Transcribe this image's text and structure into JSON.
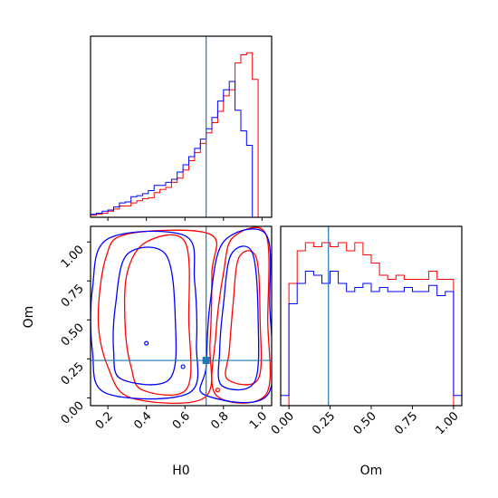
{
  "chart_data": {
    "type": "corner",
    "parameters": [
      "H0",
      "Om"
    ],
    "truths": {
      "H0": 0.71,
      "Om": 0.24
    },
    "colors": {
      "red": "#ff0000",
      "blue": "#0000ff",
      "truth": "#1f77b4"
    },
    "panels": [
      {
        "id": "H0-hist",
        "type": "histogram",
        "xlim": [
          0.11,
          1.05
        ],
        "edges": [
          0.11,
          0.14,
          0.17,
          0.2,
          0.23,
          0.26,
          0.29,
          0.32,
          0.35,
          0.38,
          0.41,
          0.44,
          0.47,
          0.5,
          0.53,
          0.56,
          0.59,
          0.62,
          0.65,
          0.68,
          0.71,
          0.74,
          0.77,
          0.8,
          0.83,
          0.86,
          0.89,
          0.92,
          0.95,
          0.98,
          1.01,
          1.05
        ],
        "series": [
          {
            "color": "red",
            "values": [
              2,
              3,
              4,
              6,
              8,
              11,
              11,
              14,
              16,
              18,
              19,
              24,
              27,
              29,
              34,
              38,
              46,
              55,
              63,
              72,
              82,
              92,
              103,
              118,
              124,
              150,
              158,
              160,
              134,
              0,
              0
            ]
          },
          {
            "color": "blue",
            "values": [
              3,
              4,
              6,
              7,
              10,
              14,
              15,
              20,
              21,
              23,
              26,
              31,
              31,
              34,
              37,
              44,
              51,
              59,
              67,
              76,
              86,
              97,
              113,
              124,
              132,
              104,
              84,
              70,
              0,
              0,
              0
            ]
          }
        ]
      },
      {
        "id": "H0-Om-2d",
        "type": "contour",
        "xlim": [
          0.11,
          1.05
        ],
        "ylim": [
          -0.05,
          1.1
        ],
        "xticks": [
          "0.2",
          "0.4",
          "0.6",
          "0.8",
          "1.0"
        ],
        "yticks": [
          "0.00",
          "0.25",
          "0.50",
          "0.75",
          "1.00"
        ],
        "xlabel": "H0",
        "ylabel": "Om",
        "contours": [
          {
            "color": "red",
            "points": [
              [
                0.32,
                0.0
              ],
              [
                0.7,
                0.0
              ],
              [
                0.73,
                0.35
              ],
              [
                0.74,
                0.8
              ],
              [
                0.73,
                1.05
              ],
              [
                0.3,
                1.05
              ],
              [
                0.19,
                0.9
              ],
              [
                0.15,
                0.5
              ],
              [
                0.2,
                0.2
              ]
            ]
          },
          {
            "color": "red",
            "points": [
              [
                0.38,
                0.05
              ],
              [
                0.61,
                0.06
              ],
              [
                0.62,
                0.5
              ],
              [
                0.6,
                1.0
              ],
              [
                0.4,
                1.0
              ],
              [
                0.3,
                0.8
              ],
              [
                0.29,
                0.45
              ],
              [
                0.32,
                0.2
              ]
            ]
          },
          {
            "color": "red",
            "points": [
              [
                0.76,
                0.02
              ],
              [
                1.02,
                0.02
              ],
              [
                1.03,
                0.5
              ],
              [
                1.02,
                1.05
              ],
              [
                0.85,
                1.03
              ],
              [
                0.8,
                0.8
              ],
              [
                0.76,
                0.4
              ]
            ]
          },
          {
            "color": "red",
            "points": [
              [
                0.82,
                0.12
              ],
              [
                0.98,
                0.12
              ],
              [
                0.99,
                0.5
              ],
              [
                0.97,
                0.9
              ],
              [
                0.88,
                0.9
              ],
              [
                0.85,
                0.6
              ],
              [
                0.83,
                0.3
              ]
            ]
          },
          {
            "color": "blue",
            "points": [
              [
                0.19,
                0.03
              ],
              [
                0.62,
                0.03
              ],
              [
                0.66,
                0.35
              ],
              [
                0.65,
                0.75
              ],
              [
                0.6,
                1.04
              ],
              [
                0.2,
                1.02
              ],
              [
                0.12,
                0.7
              ],
              [
                0.12,
                0.3
              ]
            ]
          },
          {
            "color": "blue",
            "points": [
              [
                0.27,
                0.12
              ],
              [
                0.52,
                0.12
              ],
              [
                0.55,
                0.5
              ],
              [
                0.5,
                0.92
              ],
              [
                0.3,
                0.92
              ],
              [
                0.24,
                0.6
              ],
              [
                0.23,
                0.3
              ]
            ]
          },
          {
            "color": "blue",
            "points": [
              [
                0.7,
                0.02
              ],
              [
                1.03,
                0.02
              ],
              [
                1.04,
                0.6
              ],
              [
                1.02,
                1.05
              ],
              [
                0.8,
                1.0
              ],
              [
                0.73,
                0.6
              ],
              [
                0.71,
                0.2
              ]
            ]
          },
          {
            "color": "blue",
            "points": [
              [
                0.79,
                0.08
              ],
              [
                0.96,
                0.1
              ],
              [
                0.98,
                0.5
              ],
              [
                0.95,
                0.93
              ],
              [
                0.84,
                0.92
              ],
              [
                0.8,
                0.6
              ],
              [
                0.78,
                0.3
              ]
            ]
          }
        ],
        "markers": [
          {
            "color": "blue",
            "x": 0.59,
            "y": 0.2
          },
          {
            "color": "blue",
            "x": 0.4,
            "y": 0.35
          },
          {
            "color": "red",
            "x": 0.77,
            "y": 0.05
          }
        ]
      },
      {
        "id": "Om-hist",
        "type": "histogram",
        "xlim": [
          -0.05,
          1.05
        ],
        "xticks": [
          "0.00",
          "0.25",
          "0.50",
          "0.75",
          "1.00"
        ],
        "xlabel": "Om",
        "edges": [
          -0.05,
          0.0,
          0.05,
          0.1,
          0.15,
          0.2,
          0.25,
          0.3,
          0.35,
          0.4,
          0.45,
          0.5,
          0.55,
          0.6,
          0.65,
          0.7,
          0.75,
          0.8,
          0.85,
          0.9,
          0.95,
          1.0,
          1.05
        ],
        "series": [
          {
            "color": "red",
            "values": [
              0,
              120,
              152,
              160,
              156,
              160,
              156,
              160,
              152,
              160,
              148,
              140,
              128,
              124,
              128,
              124,
              124,
              124,
              132,
              124,
              124,
              0
            ]
          },
          {
            "color": "blue",
            "values": [
              10,
              100,
              120,
              132,
              128,
              120,
              132,
              120,
              112,
              116,
              120,
              112,
              116,
              112,
              112,
              116,
              112,
              112,
              118,
              108,
              112,
              10
            ]
          }
        ]
      }
    ]
  }
}
